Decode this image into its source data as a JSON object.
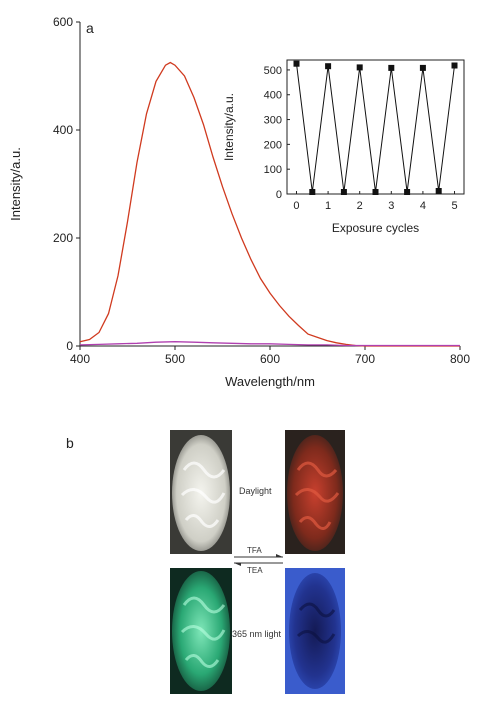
{
  "panel_a_label": "a",
  "panel_b_label": "b",
  "chart_data": [
    {
      "type": "line",
      "xlabel": "Wavelength/nm",
      "ylabel": "Intensity/a.u.",
      "xlim": [
        400,
        800
      ],
      "ylim": [
        0,
        600
      ],
      "xticks": [
        400,
        500,
        600,
        700,
        800
      ],
      "yticks": [
        0,
        200,
        400,
        600
      ],
      "grid": false,
      "series": [
        {
          "color": "#d03a1f",
          "x": [
            400,
            410,
            420,
            430,
            440,
            450,
            460,
            470,
            480,
            490,
            495,
            500,
            510,
            520,
            530,
            540,
            550,
            560,
            570,
            580,
            590,
            600,
            610,
            620,
            630,
            640,
            650,
            660,
            670,
            680,
            690,
            700,
            720,
            750,
            780,
            800
          ],
          "y": [
            8,
            12,
            25,
            60,
            130,
            230,
            340,
            430,
            490,
            520,
            525,
            520,
            500,
            460,
            410,
            350,
            295,
            245,
            200,
            160,
            125,
            98,
            75,
            55,
            38,
            22,
            16,
            10,
            6,
            3,
            1,
            0,
            0,
            0,
            0,
            0
          ]
        },
        {
          "color": "#b040b0",
          "x": [
            400,
            420,
            440,
            460,
            480,
            500,
            520,
            540,
            560,
            580,
            600,
            620,
            640,
            660,
            680,
            700,
            720,
            740,
            760,
            780,
            800
          ],
          "y": [
            2,
            3,
            4,
            5,
            7,
            8,
            7,
            6,
            5,
            4,
            4,
            3,
            2,
            2,
            1,
            1,
            1,
            1,
            1,
            1,
            1
          ]
        }
      ]
    },
    {
      "type": "line",
      "inset": true,
      "xlabel": "Exposure cycles",
      "ylabel": "Intensity/a.u.",
      "xlim": [
        -0.3,
        5.3
      ],
      "ylim": [
        0,
        540
      ],
      "xticks": [
        0,
        1,
        2,
        3,
        4,
        5
      ],
      "yticks": [
        0,
        100,
        200,
        300,
        400,
        500
      ],
      "marker": "square",
      "x": [
        0,
        0.5,
        1,
        1.5,
        2,
        2.5,
        3,
        3.5,
        4,
        4.5,
        5
      ],
      "y": [
        525,
        8,
        515,
        8,
        510,
        8,
        508,
        8,
        508,
        12,
        518
      ]
    }
  ],
  "photos": {
    "daylight_label": "Daylight",
    "light365_label": "365 nm light",
    "tfa_label": "TFA",
    "tea_label": "TEA",
    "colors": {
      "daylight_neutral": "#e8e8e0",
      "daylight_acid": "#b83a2a",
      "uv_neutral": "#39c48a",
      "uv_acid": "#1a2a8a"
    }
  }
}
